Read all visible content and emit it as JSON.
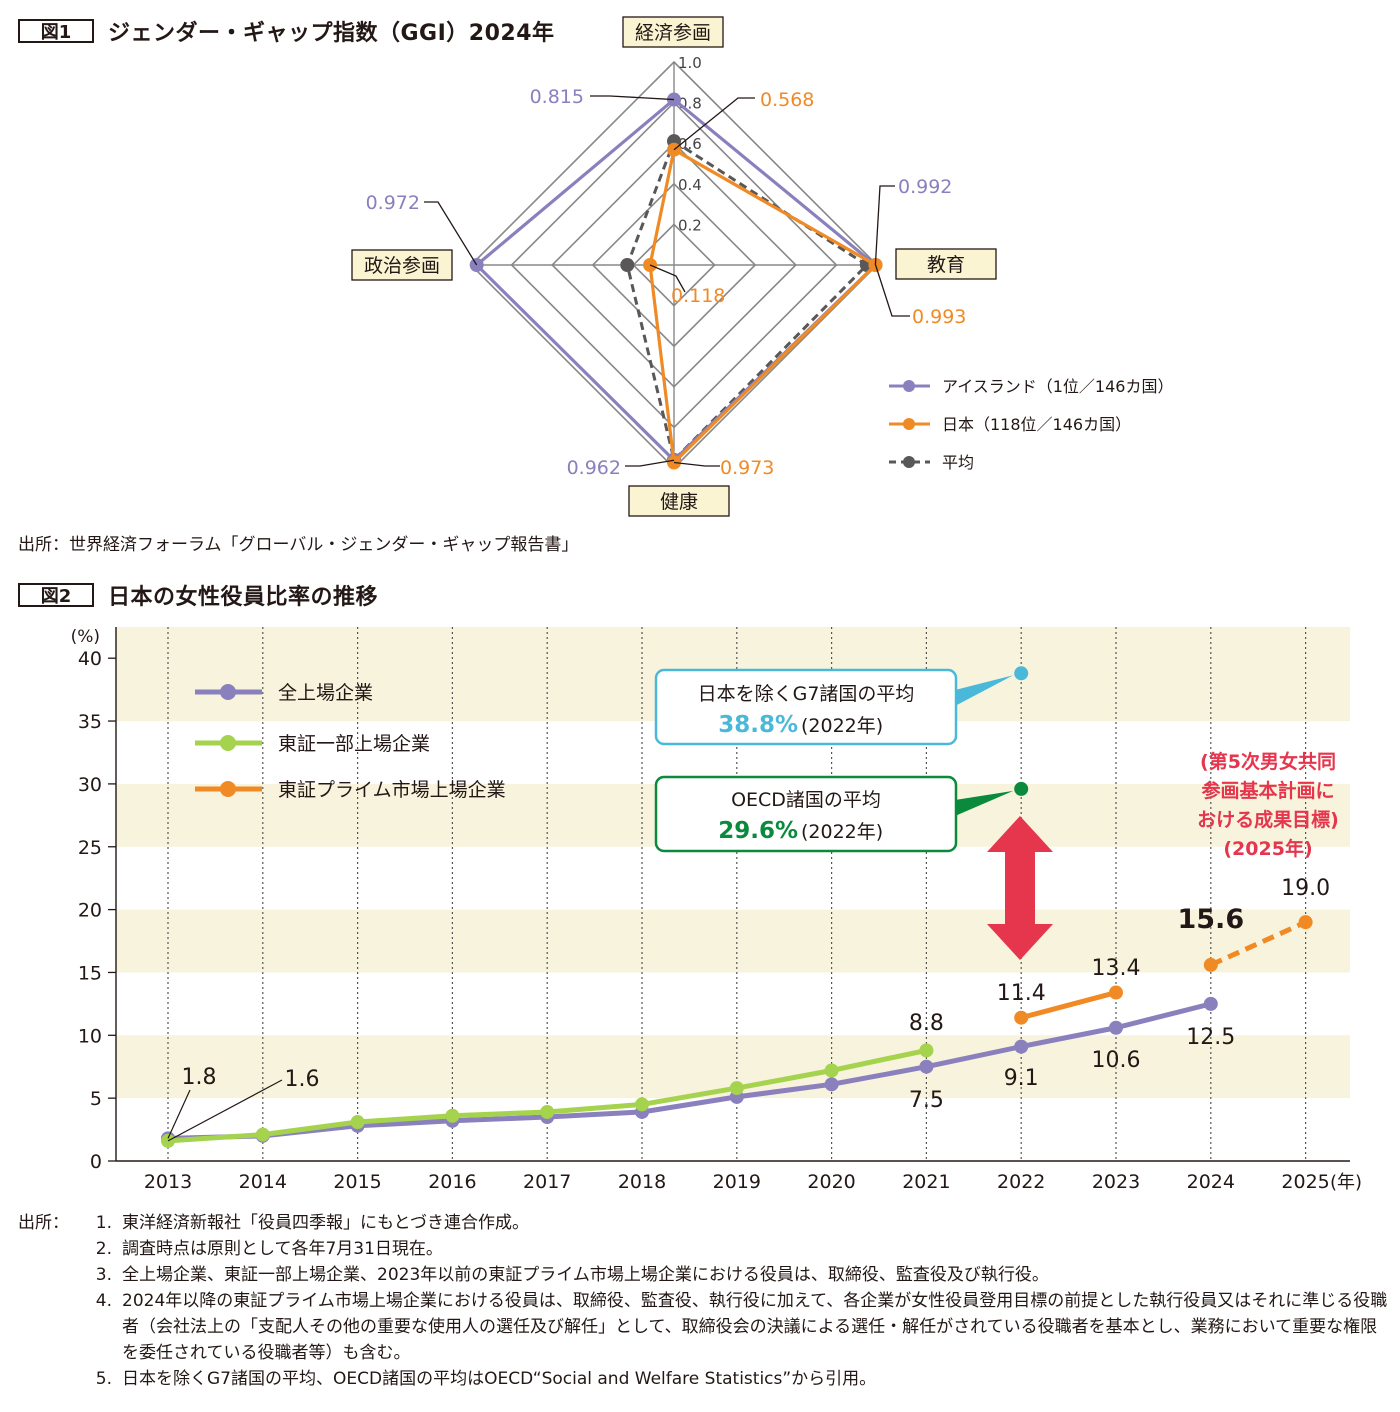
{
  "fig1": {
    "label": "図1",
    "title": "ジェンダー・ギャップ指数（GGI）2024年",
    "source": "出所：世界経済フォーラム「グローバル・ジェンダー・ギャップ報告書」"
  },
  "fig2": {
    "label": "図2",
    "title": "日本の女性役員比率の推移"
  },
  "notes": {
    "lead": "出所：",
    "items": [
      {
        "num": "1.",
        "text": "東洋経済新報社「役員四季報」にもとづき連合作成。"
      },
      {
        "num": "2.",
        "text": "調査時点は原則として各年7月31日現在。"
      },
      {
        "num": "3.",
        "text": "全上場企業、東証一部上場企業、2023年以前の東証プライム市場上場企業における役員は、取締役、監査役及び執行役。"
      },
      {
        "num": "4.",
        "text": "2024年以降の東証プライム市場上場企業における役員は、取締役、監査役、執行役に加えて、各企業が女性役員登用目標の前提とした執行役員又はそれに準じる役職者（会社法上の「支配人その他の重要な使用人の選任及び解任」として、取締役会の決議による選任・解任がされている役職者を基本とし、業務において重要な権限を委任されている役職者等）も含む。"
      },
      {
        "num": "5.",
        "text": "日本を除くG7諸国の平均、OECD諸国の平均はOECD“Social and Welfare Statistics”から引用。"
      }
    ]
  },
  "colors": {
    "purple": "#8a80bd",
    "orange": "#f08a24",
    "gray": "#595757",
    "green": "#a5d34e",
    "cyan": "#4ab9d9",
    "darkgreen": "#0a8a3c",
    "red": "#e5364d",
    "labelbox": "#faf4d2",
    "band": "#f7f3dd"
  },
  "chart_data": [
    {
      "type": "radar",
      "axes": [
        "経済参画",
        "教育",
        "健康",
        "政治参画"
      ],
      "scale_ticks": [
        "0.2",
        "0.4",
        "0.6",
        "0.8",
        "1.0"
      ],
      "rlim": [
        0,
        1.0
      ],
      "series": [
        {
          "name": "アイスランド（1位／146カ国）",
          "values": [
            0.815,
            0.992,
            0.962,
            0.972
          ],
          "labels": [
            "0.815",
            "0.992",
            "0.962",
            "0.972"
          ]
        },
        {
          "name": "日本（118位／146カ国）",
          "values": [
            0.568,
            0.993,
            0.973,
            0.118
          ],
          "labels": [
            "0.568",
            "0.993",
            "0.973",
            "0.118"
          ]
        },
        {
          "name": "平均",
          "values": [
            0.61,
            0.95,
            0.96,
            0.23
          ]
        }
      ],
      "legend": "bottom-right"
    },
    {
      "type": "line",
      "x": [
        "2013",
        "2014",
        "2015",
        "2016",
        "2017",
        "2018",
        "2019",
        "2020",
        "2021",
        "2022",
        "2023",
        "2024",
        "2025"
      ],
      "x_unit": "(年)",
      "y_unit": "(%)",
      "ylim": [
        0,
        40
      ],
      "yticks": [
        "0",
        "5",
        "10",
        "15",
        "20",
        "25",
        "30",
        "35",
        "40"
      ],
      "series": [
        {
          "name": "全上場企業",
          "values": [
            1.8,
            2.0,
            2.8,
            3.2,
            3.5,
            3.9,
            5.1,
            6.1,
            7.5,
            9.1,
            10.6,
            12.5,
            null
          ]
        },
        {
          "name": "東証一部上場企業",
          "values": [
            1.6,
            2.1,
            3.1,
            3.6,
            3.9,
            4.5,
            5.8,
            7.2,
            8.8,
            null,
            null,
            null,
            null
          ]
        },
        {
          "name": "東証プライム市場上場企業",
          "segments": [
            {
              "x": [
                "2022",
                "2023"
              ],
              "values": [
                11.4,
                13.4
              ],
              "style": "solid"
            },
            {
              "x": [
                "2024",
                "2025"
              ],
              "values": [
                15.6,
                19.0
              ],
              "style": "dashed"
            }
          ]
        }
      ],
      "data_labels": [
        {
          "text": "1.8"
        },
        {
          "text": "1.6"
        },
        {
          "text": "8.8"
        },
        {
          "text": "7.5"
        },
        {
          "text": "9.1"
        },
        {
          "text": "10.6"
        },
        {
          "text": "12.5"
        },
        {
          "text": "11.4"
        },
        {
          "text": "13.4"
        },
        {
          "text": "15.6"
        },
        {
          "text": "19.0"
        }
      ],
      "references": [
        {
          "name": "日本を除くG7諸国の平均",
          "value": 38.8,
          "x": "2022",
          "value_text": "38.8%",
          "year_text": "(2022年)"
        },
        {
          "name": "OECD諸国の平均",
          "value": 29.6,
          "x": "2022",
          "value_text": "29.6%",
          "year_text": "(2022年)"
        }
      ],
      "target_note": [
        "(第5次男女共同",
        "参画基本計画に",
        "おける成果目標)",
        "(2025年)"
      ],
      "grid": "vertical dotted",
      "legend": "top-left"
    }
  ]
}
